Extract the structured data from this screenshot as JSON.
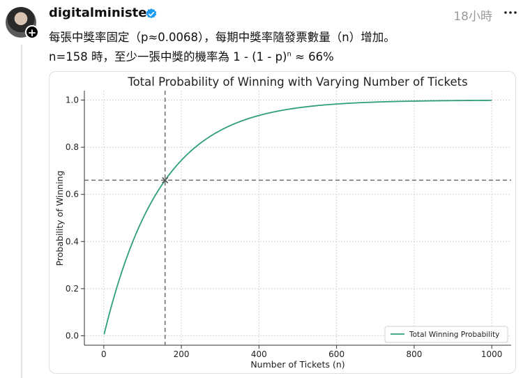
{
  "post": {
    "username": "digitalminister",
    "timestamp": "18小時",
    "line1": "每張中獎率固定（p≈0.0068），每期中獎率隨發票數量（n）增加。",
    "line2_a": "n=158 時，至少一張中獎的機率為 1 - (1 - p)",
    "line2_sup": "n",
    "line2_b": " ≈ 66%"
  },
  "icons": {
    "avatar": "user-avatar",
    "follow": "plus-icon",
    "verified": "verified-badge-icon",
    "more": "more-options-icon"
  },
  "colors": {
    "line": "#2e9e7e",
    "verified": "#1d9bf0",
    "ref": "#6d6d6d"
  },
  "chart_data": {
    "type": "line",
    "title": "Total Probability of Winning with Varying Number of Tickets",
    "xlabel": "Number of Tickets (n)",
    "ylabel": "Probability of Winning",
    "xlim": [
      -50,
      1050
    ],
    "ylim": [
      -0.04,
      1.04
    ],
    "xticks": [
      0,
      200,
      400,
      600,
      800,
      1000
    ],
    "xtick_labels": [
      "0",
      "200",
      "400",
      "600",
      "800",
      "1000"
    ],
    "yticks": [
      0.0,
      0.2,
      0.4,
      0.6,
      0.8,
      1.0
    ],
    "ytick_labels": [
      "0.0",
      "0.2",
      "0.4",
      "0.6",
      "0.8",
      "1.0"
    ],
    "grid": true,
    "legend": "bottom-right",
    "p": 0.0068,
    "series": [
      {
        "name": "Total Winning Probability",
        "x": [
          1,
          20,
          40,
          60,
          80,
          100,
          120,
          140,
          158,
          180,
          200,
          250,
          300,
          350,
          400,
          450,
          500,
          600,
          700,
          800,
          900,
          1000
        ],
        "y": [
          0.0068,
          0.127,
          0.239,
          0.336,
          0.421,
          0.495,
          0.559,
          0.615,
          0.66,
          0.707,
          0.745,
          0.819,
          0.871,
          0.909,
          0.935,
          0.954,
          0.967,
          0.983,
          0.992,
          0.996,
          0.998,
          0.999
        ]
      }
    ],
    "reference": {
      "x": 158,
      "y": 0.66
    }
  }
}
